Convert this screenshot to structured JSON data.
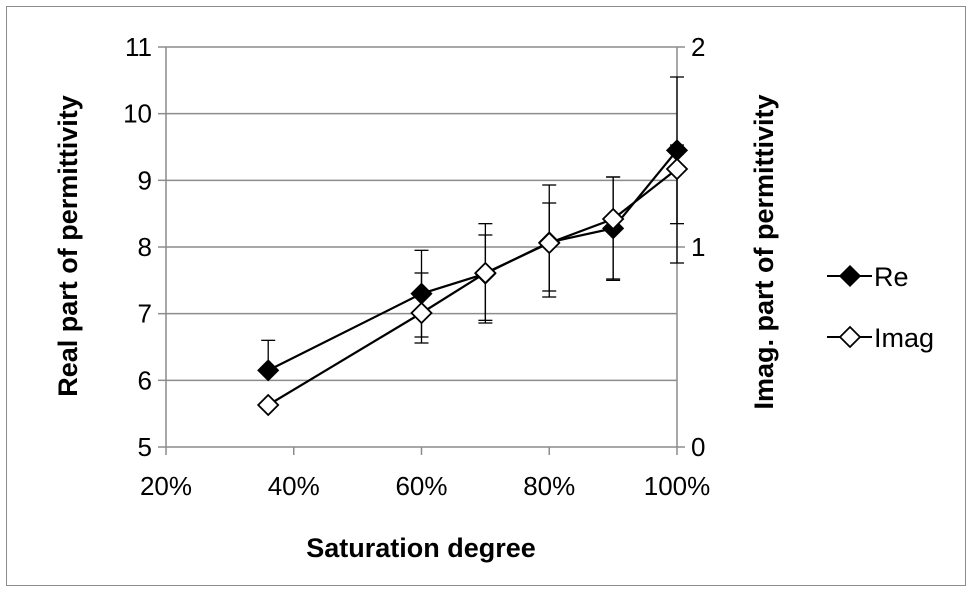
{
  "chart_data": {
    "type": "line",
    "xlabel": "Saturation degree",
    "ylabel": "Real part of permittivity",
    "y2label": "Imag. part of permittivity",
    "xlim": [
      0.2,
      1.0
    ],
    "ylim": [
      5,
      11
    ],
    "y2lim": [
      0,
      2
    ],
    "x_ticks": [
      "20%",
      "40%",
      "60%",
      "80%",
      "100%"
    ],
    "y_ticks": [
      "5",
      "6",
      "7",
      "8",
      "9",
      "10",
      "11"
    ],
    "y2_ticks": [
      "0",
      "1",
      "2"
    ],
    "grid": "horizontal",
    "legend_position": "right",
    "series": [
      {
        "name": "Re",
        "axis": "left",
        "marker": "filled-diamond",
        "color": "#000000",
        "x": [
          0.36,
          0.6,
          0.7,
          0.8,
          0.9,
          1.0
        ],
        "y": [
          6.15,
          7.3,
          7.6,
          8.07,
          8.28,
          9.45
        ],
        "err_low": [
          6.15,
          6.65,
          6.9,
          7.25,
          7.5,
          8.35
        ],
        "err_high": [
          6.6,
          7.95,
          8.35,
          8.93,
          9.05,
          10.55
        ]
      },
      {
        "name": "Imag",
        "axis": "right",
        "marker": "hollow-diamond",
        "color": "#000000",
        "x": [
          0.36,
          0.6,
          0.7,
          0.8,
          0.9,
          1.0
        ],
        "y": [
          0.21,
          0.67,
          0.87,
          1.02,
          1.14,
          1.39
        ],
        "err_low": [
          0.21,
          0.52,
          0.62,
          0.78,
          0.84,
          0.92
        ],
        "err_high": [
          0.21,
          0.87,
          1.06,
          1.22,
          1.35,
          1.51
        ]
      }
    ]
  }
}
